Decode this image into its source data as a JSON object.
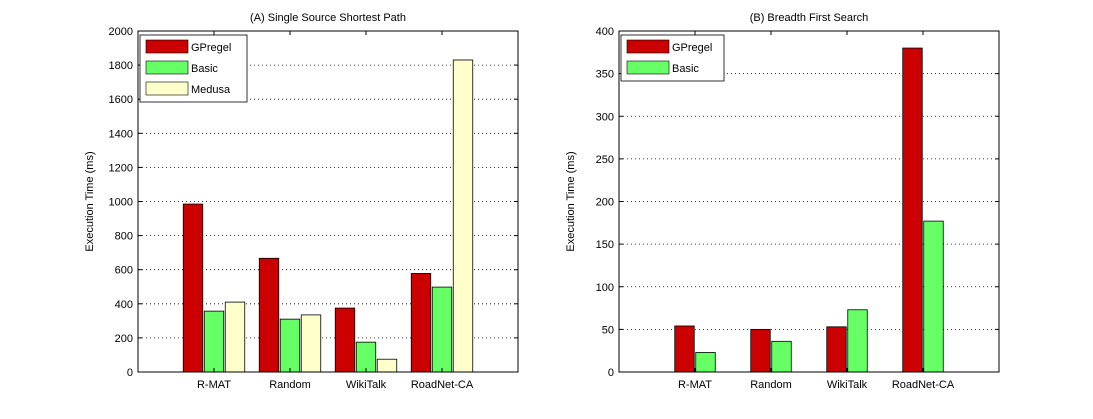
{
  "chart_data": [
    {
      "type": "bar",
      "title": "(A) Single Source Shortest Path",
      "xlabel": "",
      "ylabel": "Execution Time (ms)",
      "categories": [
        "R-MAT",
        "Random",
        "WikiTalk",
        "RoadNet-CA"
      ],
      "ylim": [
        0,
        2000
      ],
      "yticks": [
        0,
        200,
        400,
        600,
        800,
        1000,
        1200,
        1400,
        1600,
        1800,
        2000
      ],
      "grid": "horizontal dotted",
      "legend_position": "top-left",
      "series": [
        {
          "name": "GPregel",
          "color": "#cc0000",
          "values": [
            985,
            667,
            375,
            578
          ]
        },
        {
          "name": "Basic",
          "color": "#66ff66",
          "values": [
            357,
            310,
            175,
            498
          ]
        },
        {
          "name": "Medusa",
          "color": "#ffffcc",
          "values": [
            410,
            335,
            75,
            1830
          ]
        }
      ]
    },
    {
      "type": "bar",
      "title": "(B) Breadth First Search",
      "xlabel": "",
      "ylabel": "Execution Time (ms)",
      "categories": [
        "R-MAT",
        "Random",
        "WikiTalk",
        "RoadNet-CA"
      ],
      "ylim": [
        0,
        400
      ],
      "yticks": [
        0,
        50,
        100,
        150,
        200,
        250,
        300,
        350,
        400
      ],
      "grid": "horizontal dotted",
      "legend_position": "top-left",
      "series": [
        {
          "name": "GPregel",
          "color": "#cc0000",
          "values": [
            54,
            50,
            53,
            380
          ]
        },
        {
          "name": "Basic",
          "color": "#66ff66",
          "values": [
            23,
            36,
            73,
            177
          ]
        }
      ]
    }
  ]
}
